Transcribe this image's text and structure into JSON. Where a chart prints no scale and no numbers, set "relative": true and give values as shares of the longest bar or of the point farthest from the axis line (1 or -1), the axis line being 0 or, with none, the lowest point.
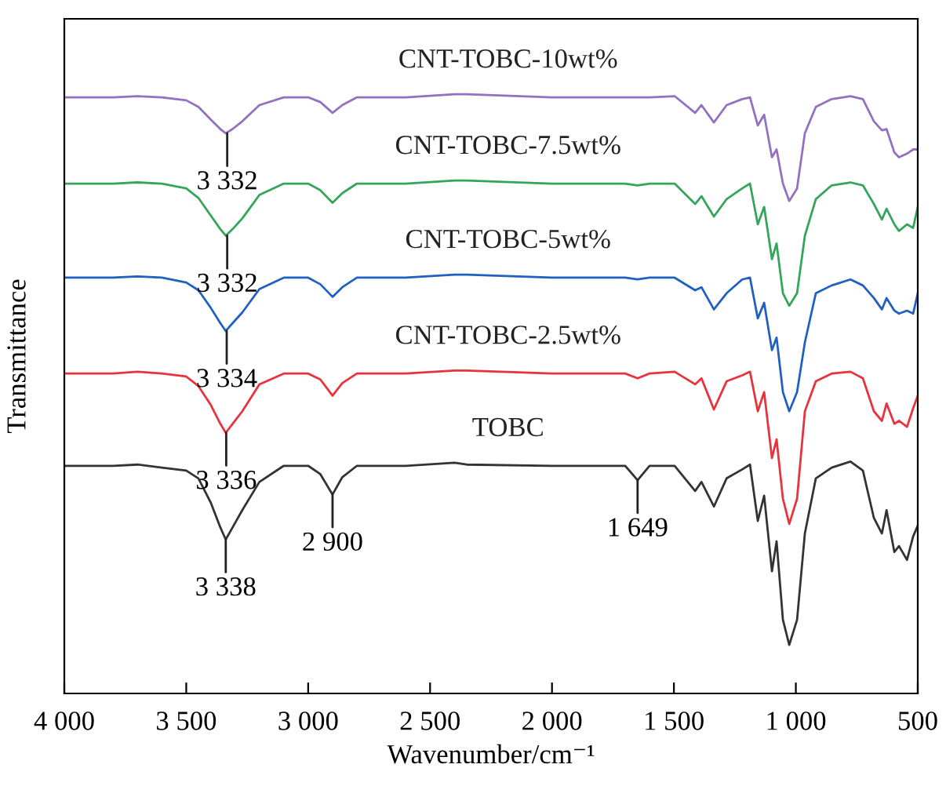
{
  "chart_data": {
    "type": "line",
    "relative": true,
    "xlabel": "Wavenumber/cm⁻¹",
    "ylabel": "Transmittance",
    "legend": false,
    "grid": false,
    "marker": "none",
    "line_style": "solid",
    "tick_labels": "x",
    "x": [
      4000,
      3800,
      3700,
      3600,
      3500,
      3450,
      3400,
      3360,
      3338,
      3310,
      3270,
      3200,
      3100,
      3000,
      2950,
      2900,
      2860,
      2800,
      2600,
      2400,
      2350,
      2000,
      1800,
      1700,
      1649,
      1600,
      1497,
      1413,
      1387,
      1336,
      1284,
      1220,
      1188,
      1156,
      1130,
      1098,
      1079,
      1053,
      1027,
      995,
      963,
      918,
      853,
      776,
      725,
      680,
      647,
      628,
      596,
      577,
      544,
      519,
      500
    ],
    "xlim": [
      4000,
      500
    ],
    "xticks": [
      {
        "value": 4000,
        "label": "4 000"
      },
      {
        "value": 3500,
        "label": "3 500"
      },
      {
        "value": 3000,
        "label": "3 000"
      },
      {
        "value": 2500,
        "label": "2 500"
      },
      {
        "value": 2000,
        "label": "2 000"
      },
      {
        "value": 1500,
        "label": "1 500"
      },
      {
        "value": 1000,
        "label": "1 000"
      },
      500
    ],
    "series": [
      {
        "name": "CNT-TOBC-10wt%",
        "color": "#9470c0",
        "values": [
          0.995,
          0.995,
          0.997,
          0.995,
          0.99,
          0.979,
          0.958,
          0.942,
          0.935,
          0.942,
          0.955,
          0.982,
          0.995,
          0.995,
          0.987,
          0.969,
          0.982,
          0.995,
          0.995,
          1,
          1,
          0.995,
          0.995,
          0.995,
          0.995,
          0.995,
          0.997,
          0.969,
          0.982,
          0.953,
          0.982,
          0.992,
          0.995,
          0.948,
          0.966,
          0.895,
          0.908,
          0.851,
          0.822,
          0.843,
          0.935,
          0.979,
          0.992,
          0.997,
          0.992,
          0.955,
          0.94,
          0.942,
          0.903,
          0.895,
          0.901,
          0.908,
          0.908
        ]
      },
      {
        "name": "CNT-TOBC-7.5wt%",
        "color": "#35a55a",
        "values": [
          0.851,
          0.851,
          0.853,
          0.851,
          0.843,
          0.827,
          0.798,
          0.775,
          0.764,
          0.775,
          0.793,
          0.832,
          0.851,
          0.851,
          0.84,
          0.819,
          0.835,
          0.851,
          0.851,
          0.856,
          0.856,
          0.851,
          0.851,
          0.851,
          0.848,
          0.851,
          0.851,
          0.817,
          0.83,
          0.796,
          0.825,
          0.843,
          0.851,
          0.783,
          0.812,
          0.725,
          0.751,
          0.668,
          0.647,
          0.668,
          0.764,
          0.825,
          0.848,
          0.853,
          0.848,
          0.817,
          0.791,
          0.809,
          0.783,
          0.772,
          0.783,
          0.777,
          0.812
        ]
      },
      {
        "name": "CNT-TOBC-5wt%",
        "color": "#2060c0",
        "values": [
          0.694,
          0.694,
          0.696,
          0.694,
          0.686,
          0.673,
          0.644,
          0.618,
          0.605,
          0.618,
          0.636,
          0.675,
          0.694,
          0.694,
          0.683,
          0.662,
          0.678,
          0.694,
          0.694,
          0.699,
          0.699,
          0.694,
          0.694,
          0.694,
          0.691,
          0.694,
          0.694,
          0.673,
          0.678,
          0.641,
          0.668,
          0.691,
          0.694,
          0.626,
          0.652,
          0.573,
          0.594,
          0.503,
          0.471,
          0.503,
          0.586,
          0.668,
          0.681,
          0.691,
          0.681,
          0.66,
          0.641,
          0.66,
          0.639,
          0.634,
          0.639,
          0.634,
          0.668
        ]
      },
      {
        "name": "CNT-TOBC-2.5wt%",
        "color": "#e8333c",
        "values": [
          0.534,
          0.534,
          0.537,
          0.534,
          0.529,
          0.513,
          0.482,
          0.45,
          0.435,
          0.45,
          0.471,
          0.516,
          0.534,
          0.534,
          0.524,
          0.497,
          0.518,
          0.534,
          0.534,
          0.539,
          0.539,
          0.534,
          0.534,
          0.534,
          0.526,
          0.534,
          0.537,
          0.516,
          0.526,
          0.474,
          0.521,
          0.531,
          0.537,
          0.471,
          0.503,
          0.393,
          0.424,
          0.325,
          0.283,
          0.325,
          0.471,
          0.521,
          0.534,
          0.537,
          0.526,
          0.471,
          0.455,
          0.484,
          0.45,
          0.455,
          0.445,
          0.476,
          0.497
        ]
      },
      {
        "name": "TOBC",
        "color": "#333333",
        "values": [
          0.38,
          0.38,
          0.382,
          0.377,
          0.372,
          0.359,
          0.319,
          0.277,
          0.257,
          0.277,
          0.306,
          0.353,
          0.38,
          0.38,
          0.366,
          0.332,
          0.361,
          0.38,
          0.38,
          0.385,
          0.382,
          0.38,
          0.38,
          0.38,
          0.356,
          0.38,
          0.38,
          0.338,
          0.353,
          0.312,
          0.359,
          0.374,
          0.382,
          0.288,
          0.33,
          0.204,
          0.254,
          0.123,
          0.081,
          0.123,
          0.267,
          0.359,
          0.377,
          0.387,
          0.372,
          0.293,
          0.267,
          0.306,
          0.236,
          0.246,
          0.223,
          0.262,
          0.28
        ]
      }
    ],
    "annotations": [
      {
        "text": "3 332",
        "x": 3332,
        "y": 0.935
      },
      {
        "text": "3 332",
        "x": 3332,
        "y": 0.764
      },
      {
        "text": "3 334",
        "x": 3334,
        "y": 0.605
      },
      {
        "text": "3 336",
        "x": 3336,
        "y": 0.435
      },
      {
        "text": "3 338",
        "x": 3338,
        "y": 0.257
      },
      {
        "text": "2 900",
        "x": 2900,
        "y": 0.332
      },
      {
        "text": "1 649",
        "x": 1649,
        "y": 0.356
      }
    ]
  }
}
